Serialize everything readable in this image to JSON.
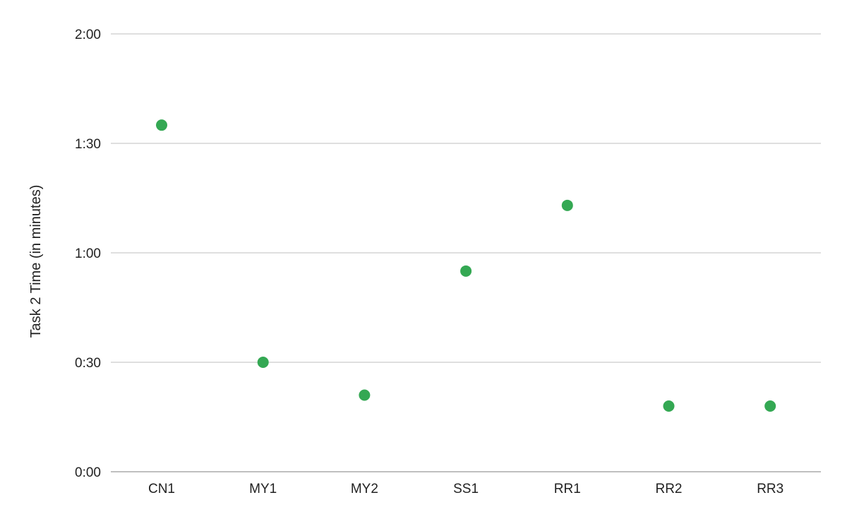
{
  "chart_data": {
    "type": "scatter",
    "title": "",
    "xlabel": "",
    "ylabel": "Task 2 Time (in minutes)",
    "categories": [
      "CN1",
      "MY1",
      "MY2",
      "SS1",
      "RR1",
      "RR2",
      "RR3"
    ],
    "series": [
      {
        "values": [
          95,
          30,
          21,
          55,
          73,
          18,
          18
        ],
        "color": "#34a853"
      }
    ],
    "y_unit": "seconds",
    "ylim": [
      0,
      120
    ],
    "yticks": [
      0,
      30,
      60,
      90,
      120
    ],
    "ytick_labels": [
      "0:00",
      "0:30",
      "1:00",
      "1:30",
      "2:00"
    ],
    "grid": true,
    "legend": "none"
  }
}
